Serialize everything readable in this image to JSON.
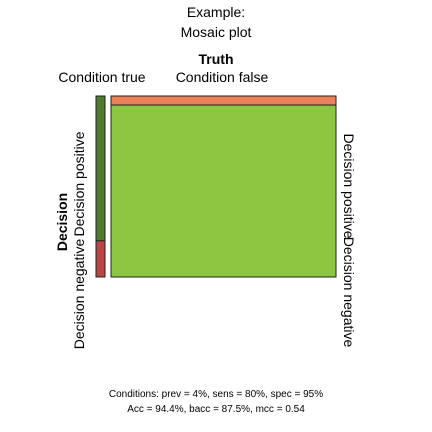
{
  "chart_data": {
    "type": "mosaic",
    "title": "Example:",
    "subtitle": "Mosaic plot",
    "top_axis": {
      "title": "Truth",
      "labels": [
        "Condition true",
        "Condition false"
      ]
    },
    "left_axis": {
      "title": "Decision",
      "labels": [
        "Decision positive",
        "Decision negative"
      ]
    },
    "right_labels": [
      "Decision positive",
      "Decision negative"
    ],
    "prevalence": 0.04,
    "sensitivity": 0.8,
    "specificity": 0.95,
    "columns": [
      {
        "condition": "Condition true",
        "width_fraction": 0.04,
        "cells": [
          {
            "decision": "Decision positive",
            "fraction": 0.8,
            "color": "#4f7b2a"
          },
          {
            "decision": "Decision negative",
            "fraction": 0.2,
            "color": "#bb4444"
          }
        ]
      },
      {
        "condition": "Condition false",
        "width_fraction": 0.96,
        "cells": [
          {
            "decision": "Decision positive",
            "fraction": 0.05,
            "color": "#e8825a"
          },
          {
            "decision": "Decision negative",
            "fraction": 0.95,
            "color": "#8dc63f"
          }
        ]
      }
    ],
    "caption_line1": "Conditions: prev = 4%, sens = 80%, spec = 95%",
    "caption_line2": "Acc = 94.4%, bacc = 87.5%, mcc = 0.54"
  }
}
